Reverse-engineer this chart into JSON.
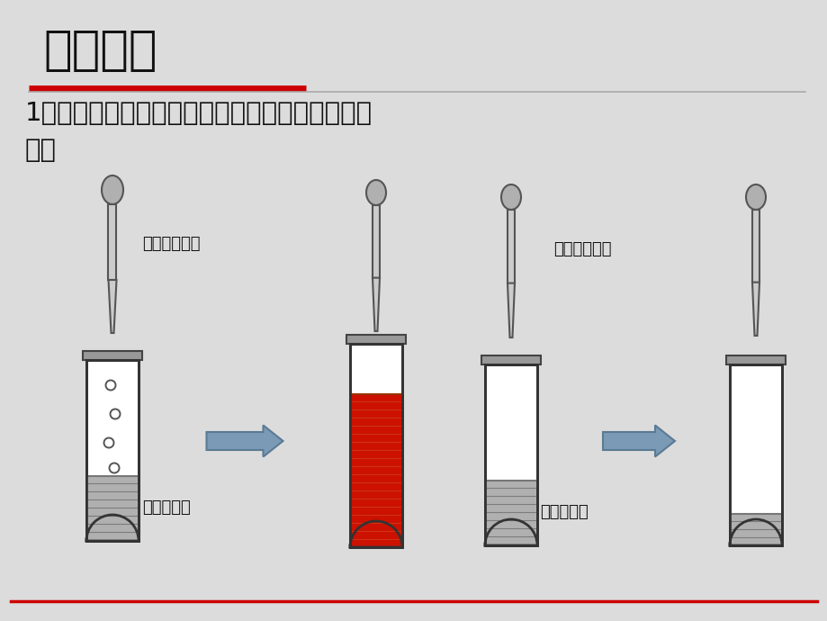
{
  "title": "酸的通性",
  "line1": "1、酸能使紫色石蕊试液变红，使无色酚酞试液不",
  "line2": "变色",
  "bg_color": "#dcdcdc",
  "title_color": "#111111",
  "red_line_color": "#cc0000",
  "gray_line_color": "#aaaaaa",
  "label1": "紫色石蕊试液",
  "label2": "稀硫酸溶液",
  "label3": "无色酚酞溶液",
  "label4": "稀硫酸溶液",
  "arrow_color": "#7a9ab5",
  "arrow_edge": "#5a7a95",
  "liquid_gray": "#b0b0b0",
  "liquid_red": "#cc1100",
  "tube_outline": "#333333",
  "tube_fill": "#ffffff",
  "cap_color": "#999999",
  "dropper_bulb": "#b0b0b0",
  "dropper_body": "#cccccc",
  "dropper_tip_color": "#999999",
  "bottom_line_color": "#cc0000"
}
